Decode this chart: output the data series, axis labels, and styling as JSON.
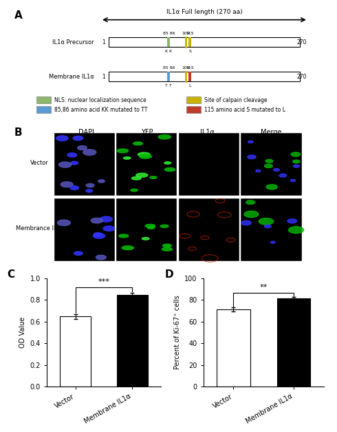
{
  "panel_C": {
    "categories": [
      "Vector",
      "Membrane IL1α"
    ],
    "values": [
      0.645,
      0.845
    ],
    "errors": [
      0.025,
      0.02
    ],
    "bar_colors": [
      "white",
      "black"
    ],
    "ylabel": "OD Value",
    "ylim": [
      0,
      1.0
    ],
    "yticks": [
      0.0,
      0.2,
      0.4,
      0.6,
      0.8,
      1.0
    ],
    "sig_text": "***",
    "title": "C"
  },
  "panel_D": {
    "categories": [
      "Vector",
      "Membrane IL1α"
    ],
    "values": [
      71,
      81
    ],
    "errors": [
      2,
      1.5
    ],
    "bar_colors": [
      "white",
      "black"
    ],
    "ylabel": "Percent of Ki-67⁺ cells",
    "ylim": [
      0,
      100
    ],
    "yticks": [
      0,
      20,
      40,
      60,
      80,
      100
    ],
    "sig_text": "**",
    "title": "D"
  },
  "diagram": {
    "full_length_label": "IL1α Full length (270 aa)",
    "precursor_label": "IL1α Precursor",
    "membrane_label": "Membrane IL1α",
    "legend_items": [
      {
        "color": "#8db86b",
        "label": "NLS: nuclear localization sequence"
      },
      {
        "color": "#c8b400",
        "label": "Site of calpain cleavage"
      },
      {
        "color": "#5b9bd5",
        "label": "85,86 amino acid KK mutated to TT"
      },
      {
        "color": "#c0392b",
        "label": "115 amino acid S mutated to L"
      }
    ]
  },
  "microscopy_labels": {
    "col_headers": [
      "DAPI",
      "YFP",
      "IL1α",
      "Merge"
    ],
    "row_labels": [
      "Vector",
      "Membrance IL1α"
    ]
  },
  "background_color": "#ffffff"
}
